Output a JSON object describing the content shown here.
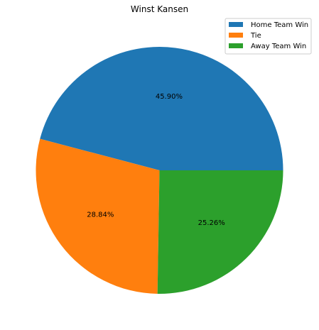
{
  "chart_data": {
    "type": "pie",
    "title": "Winst Kansen",
    "categories": [
      "Home Team Win",
      "Tie",
      "Away Team Win"
    ],
    "values": [
      45.9,
      28.84,
      25.26
    ],
    "value_labels": [
      "45.90%",
      "28.84%",
      "25.26%"
    ],
    "colors": [
      "#1f77b4",
      "#ff7f0e",
      "#2ca02c"
    ],
    "legend": {
      "position": "top-right",
      "entries": [
        "Home Team Win",
        "Tie",
        "Away Team Win"
      ]
    }
  }
}
